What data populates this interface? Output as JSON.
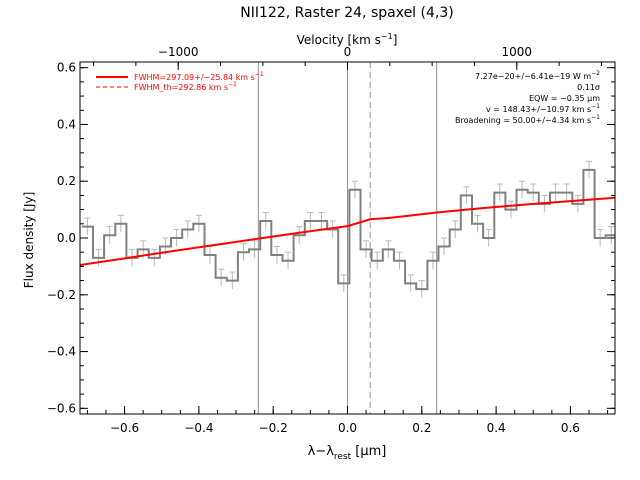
{
  "chart_data": {
    "type": "line",
    "title": "NII122, Raster 24, spaxel (4,3)",
    "xlabel": "λ−λrest [μm]",
    "xlabel_main": "λ−λ",
    "xlabel_sub": "rest",
    "xlabel_unit": " [μm]",
    "ylabel": "Flux density [Jy]",
    "top_axis_label": "Velocity [km s⁻¹]",
    "top_axis_label_main": "Velocity [km s",
    "top_axis_label_sup": "−1",
    "top_axis_label_end": "]",
    "xlim": [
      -0.72,
      0.72
    ],
    "ylim": [
      -0.62,
      0.62
    ],
    "velocity_xlim": [
      -1580,
      1580
    ],
    "x_ticks": [
      -0.6,
      -0.4,
      -0.2,
      0.0,
      0.2,
      0.4,
      0.6
    ],
    "x_tick_labels": [
      "−0.6",
      "−0.4",
      "−0.2",
      "0.0",
      "0.2",
      "0.4",
      "0.6"
    ],
    "y_ticks": [
      -0.6,
      -0.4,
      -0.2,
      0.0,
      0.2,
      0.4,
      0.6
    ],
    "y_tick_labels": [
      "−0.6",
      "−0.4",
      "−0.2",
      "0.0",
      "0.2",
      "0.4",
      "0.6"
    ],
    "velocity_ticks": [
      -1000,
      0,
      1000
    ],
    "velocity_tick_labels": [
      "−1000",
      "0",
      "1000"
    ],
    "vertical_lines": [
      {
        "x": -0.24,
        "style": "solid"
      },
      {
        "x": 0.0,
        "style": "solid"
      },
      {
        "x": 0.24,
        "style": "solid"
      },
      {
        "x": 0.061,
        "style": "dashed"
      }
    ],
    "series": [
      {
        "kind": "spectrum-histogram",
        "color": "#808080",
        "x": [
          -0.7,
          -0.67,
          -0.64,
          -0.61,
          -0.58,
          -0.55,
          -0.52,
          -0.49,
          -0.46,
          -0.43,
          -0.4,
          -0.37,
          -0.34,
          -0.31,
          -0.28,
          -0.25,
          -0.22,
          -0.19,
          -0.16,
          -0.13,
          -0.1,
          -0.07,
          -0.04,
          -0.01,
          0.02,
          0.05,
          0.08,
          0.11,
          0.14,
          0.17,
          0.2,
          0.23,
          0.26,
          0.29,
          0.32,
          0.35,
          0.38,
          0.41,
          0.44,
          0.47,
          0.5,
          0.53,
          0.56,
          0.59,
          0.62,
          0.65,
          0.68,
          0.71
        ],
        "y": [
          0.04,
          -0.07,
          0.01,
          0.05,
          -0.07,
          -0.04,
          -0.07,
          -0.03,
          0.0,
          0.03,
          0.05,
          -0.06,
          -0.14,
          -0.15,
          -0.05,
          -0.04,
          0.06,
          -0.06,
          -0.08,
          0.01,
          0.06,
          0.06,
          0.03,
          -0.16,
          0.17,
          -0.04,
          -0.08,
          -0.04,
          -0.08,
          -0.16,
          -0.18,
          -0.08,
          -0.03,
          0.03,
          0.15,
          0.05,
          0.0,
          0.16,
          0.1,
          0.17,
          0.16,
          0.12,
          0.16,
          0.16,
          0.12,
          0.24,
          0.0,
          0.01
        ],
        "err": 0.03
      },
      {
        "name": "FWHM=297.09+/−25.84 km s⁻¹",
        "kind": "fit",
        "color": "#ff0000",
        "line_style": "solid",
        "x": [
          -0.72,
          -0.6,
          -0.48,
          -0.36,
          -0.24,
          -0.12,
          0.0,
          0.061,
          0.12,
          0.24,
          0.36,
          0.48,
          0.6,
          0.72
        ],
        "y": [
          -0.095,
          -0.072,
          -0.048,
          -0.025,
          -0.002,
          0.02,
          0.042,
          0.066,
          0.072,
          0.09,
          0.105,
          0.118,
          0.13,
          0.142
        ]
      }
    ],
    "legend": {
      "placement": "top-left",
      "entries": [
        {
          "text": "FWHM=297.09+/−25.84 km s⁻¹",
          "main": "FWHM=297.09+/−25.84 km s",
          "sup": "−1",
          "color": "#ff0000",
          "line_style": "solid"
        },
        {
          "text": "FWHM_th=292.86 km s⁻¹",
          "main": "FWHM_th=292.86 km s",
          "sup": "−1",
          "color": "#ff0000",
          "line_style": "dashed"
        }
      ]
    },
    "annotations": {
      "placement": "top-right",
      "lines": [
        {
          "main": "7.27e−20+/−6.41e−19 W m",
          "sup": "−2"
        },
        {
          "main": "0.11σ",
          "sup": ""
        },
        {
          "main": "EQW = −0.35 μm",
          "sup": ""
        },
        {
          "main": "v = 148.43+/−10.97 km s",
          "sup": "−1"
        },
        {
          "main": "Broadening = 50.00+/−4.34 km s",
          "sup": "−1"
        }
      ]
    }
  }
}
